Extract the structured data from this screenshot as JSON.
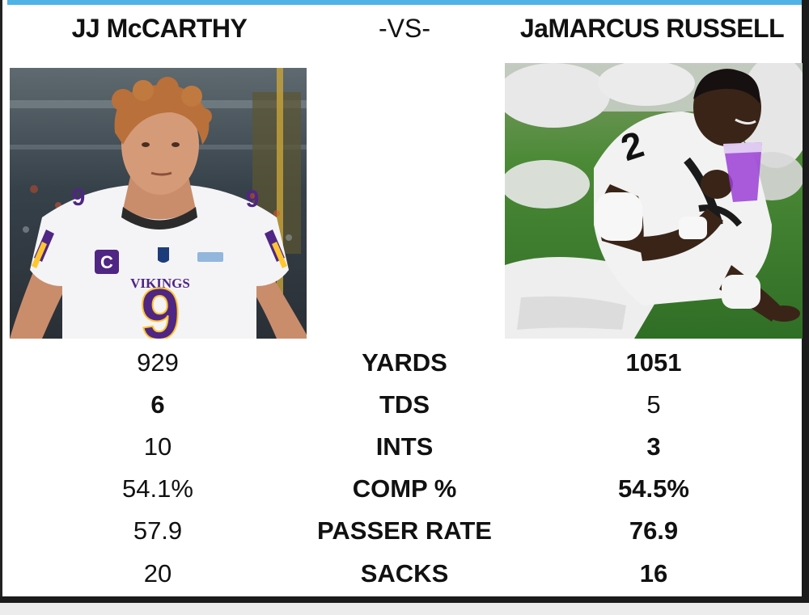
{
  "header": {
    "left_player": "JJ McCARTHY",
    "vs": "-VS-",
    "right_player": "JaMARCUS RUSSELL"
  },
  "photos": {
    "left": {
      "jersey_team": "VIKINGS",
      "jersey_number": "9",
      "captain_patch": "C",
      "colors": {
        "jersey": "#f4f4f6",
        "purple": "#4f2683",
        "gold": "#ffc62f",
        "hair": "#b9703a"
      }
    },
    "right": {
      "jersey_number": "2",
      "colors": {
        "jersey": "#f2f2f2",
        "grass": "#3d7a2c",
        "cup": "#9b3fd6"
      }
    }
  },
  "stats": [
    {
      "label": "YARDS",
      "left": "929",
      "right": "1051",
      "bold": "right"
    },
    {
      "label": "TDS",
      "left": "6",
      "right": "5",
      "bold": "left"
    },
    {
      "label": "INTS",
      "left": "10",
      "right": "3",
      "bold": "right"
    },
    {
      "label": "COMP %",
      "left": "54.1%",
      "right": "54.5%",
      "bold": "right"
    },
    {
      "label": "PASSER RATE",
      "left": "57.9",
      "right": "76.9",
      "bold": "right"
    },
    {
      "label": "SACKS",
      "left": "20",
      "right": "16",
      "bold": "right"
    }
  ],
  "theme": {
    "accent_bar": "#4fb3e6",
    "text": "#111111",
    "background": "#ffffff"
  }
}
